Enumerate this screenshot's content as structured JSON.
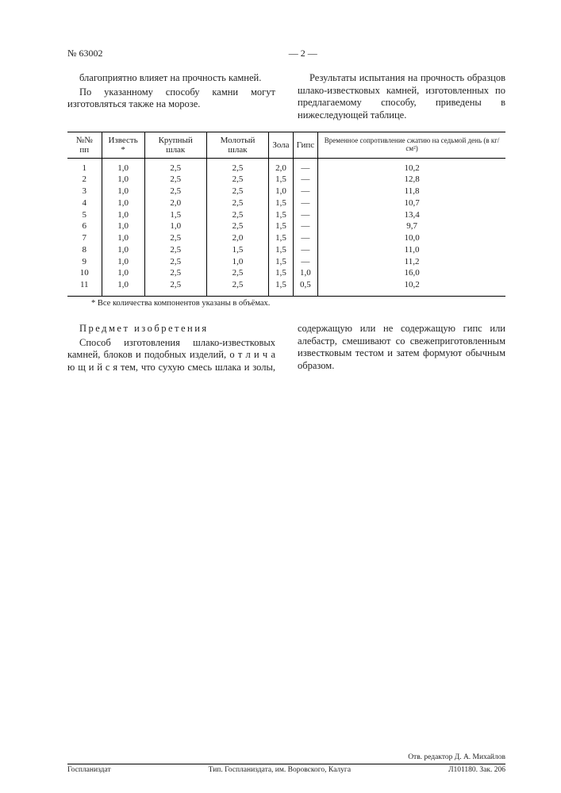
{
  "header": {
    "docnum": "№ 63002",
    "pagenum": "— 2 —"
  },
  "pre_table": {
    "p1": "благоприятно влияет на прочность камней.",
    "p2": "По указанному способу камни могут изготовляться также на морозе.",
    "p3": "Результаты испытания на прочность образцов шлако-известковых камней, изготовленных по предлагаемому способу, приведены в нижеследующей таблице."
  },
  "table": {
    "headers": [
      "№№ пп",
      "Известь *",
      "Крупный шлак",
      "Молотый шлак",
      "Зола",
      "Гипс",
      "Временное сопро­тивление сжатию на седьмой день (в кг/см²)"
    ],
    "rows": [
      [
        "1",
        "1,0",
        "2,5",
        "2,5",
        "2,0",
        "—",
        "10,2"
      ],
      [
        "2",
        "1,0",
        "2,5",
        "2,5",
        "1,5",
        "—",
        "12,8"
      ],
      [
        "3",
        "1,0",
        "2,5",
        "2,5",
        "1,0",
        "—",
        "11,8"
      ],
      [
        "4",
        "1,0",
        "2,0",
        "2,5",
        "1,5",
        "—",
        "10,7"
      ],
      [
        "5",
        "1,0",
        "1,5",
        "2,5",
        "1,5",
        "—",
        "13,4"
      ],
      [
        "6",
        "1,0",
        "1,0",
        "2,5",
        "1,5",
        "—",
        "9,7"
      ],
      [
        "7",
        "1,0",
        "2,5",
        "2,0",
        "1,5",
        "—",
        "10,0"
      ],
      [
        "8",
        "1,0",
        "2,5",
        "1,5",
        "1,5",
        "—",
        "11,0"
      ],
      [
        "9",
        "1,0",
        "2,5",
        "1,0",
        "1,5",
        "—",
        "11,2"
      ],
      [
        "10",
        "1,0",
        "2,5",
        "2,5",
        "1,5",
        "1,0",
        "16,0"
      ],
      [
        "11",
        "1,0",
        "2,5",
        "2,5",
        "1,5",
        "0,5",
        "10,2"
      ]
    ],
    "footnote": "* Все количества компонентов указаны в объёмах."
  },
  "claims": {
    "heading": "Предмет изобретения",
    "body": "Способ изготовления шлако-известковых камней, блоков и подобных изделий, о т л и ч а ю щ и й с я тем, что сухую смесь шлака и золы, содержащую или не содержащую гипс или алебастр, смешивают со свежеприготовленным известковым тестом и затем формуют обычным образом."
  },
  "colophon": {
    "editor_line": "Отв. редактор Д. А. Михайлов",
    "left": "Госпланиздат",
    "mid": "Тип. Госпланиздата, им. Воровского, Калуга",
    "right": "Л101180.  Зак. 206"
  }
}
